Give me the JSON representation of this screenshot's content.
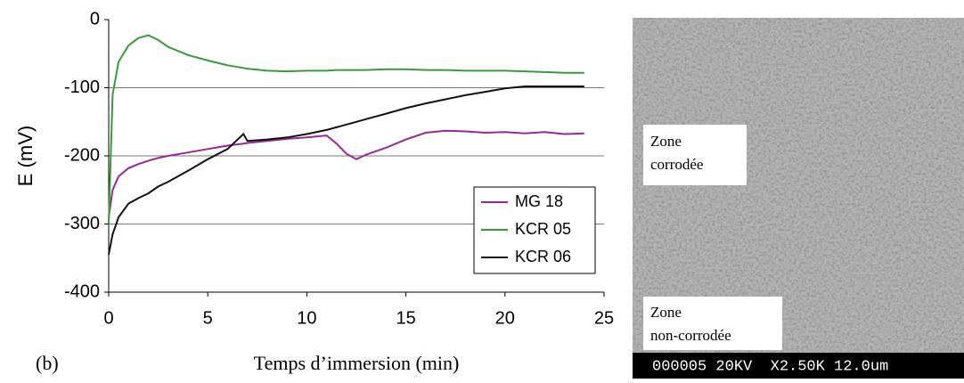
{
  "chart_data": {
    "type": "line",
    "panel_label": "(b)",
    "xlabel": "Temps d’immersion (min)",
    "ylabel": "E (mV)",
    "x": [
      0,
      0.2,
      0.5,
      1,
      1.5,
      2,
      2.5,
      3,
      4,
      5,
      6,
      6.8,
      7,
      8,
      9,
      10,
      11,
      11.5,
      12,
      12.5,
      13,
      14,
      15,
      16,
      17,
      18,
      19,
      20,
      21,
      22,
      23,
      24
    ],
    "series": [
      {
        "name": "MG 18",
        "color": "#952a95",
        "values": [
          -290,
          -250,
          -230,
          -218,
          -212,
          -207,
          -203,
          -200,
          -195,
          -190,
          -185,
          -182,
          -181,
          -178,
          -175,
          -173,
          -170,
          -182,
          -197,
          -205,
          -198,
          -188,
          -176,
          -166,
          -163,
          -164,
          -166,
          -165,
          -167,
          -165,
          -168,
          -167
        ]
      },
      {
        "name": "KCR 05",
        "color": "#3a9a3a",
        "values": [
          -300,
          -110,
          -62,
          -38,
          -27,
          -23,
          -30,
          -40,
          -52,
          -60,
          -67,
          -71,
          -72,
          -75,
          -76,
          -75,
          -75,
          -74,
          -74,
          -74,
          -74,
          -73,
          -73,
          -74,
          -74,
          -75,
          -75,
          -75,
          -76,
          -77,
          -78,
          -78
        ]
      },
      {
        "name": "KCR 06",
        "color": "#111111",
        "values": [
          -345,
          -315,
          -290,
          -270,
          -262,
          -255,
          -245,
          -238,
          -222,
          -205,
          -190,
          -168,
          -178,
          -176,
          -173,
          -168,
          -162,
          -158,
          -154,
          -150,
          -146,
          -138,
          -130,
          -123,
          -117,
          -111,
          -106,
          -101,
          -98,
          -98,
          -98,
          -98
        ]
      }
    ],
    "xlim": [
      0,
      25
    ],
    "xticks": [
      0,
      5,
      10,
      15,
      20,
      25
    ],
    "ylim": [
      -400,
      0
    ],
    "yticks": [
      -400,
      -300,
      -200,
      -100,
      0
    ],
    "grid": true,
    "legend": "lower right"
  },
  "image": {
    "label_top": [
      "Zone",
      "corrodée"
    ],
    "label_bottom": [
      "Zone",
      "non-corrodée"
    ],
    "info_bar": "000005 20KV  X2.50K 12.0um"
  }
}
